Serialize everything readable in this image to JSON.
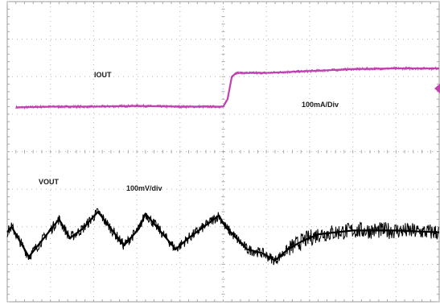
{
  "chart_data": {
    "type": "line",
    "title": "",
    "xlabel": "",
    "ylabel": "",
    "grid": true,
    "grid_divisions": {
      "x": 10,
      "y": 8
    },
    "xlim": [
      0,
      10
    ],
    "ylim": [
      -4,
      4
    ],
    "annotations": {
      "iout_name": "IOUT",
      "iout_scale": "100mA/Div",
      "vout_name": "VOUT",
      "vout_scale": "100mV/div"
    },
    "series": [
      {
        "key": "iout",
        "color": "#c040b0",
        "x": [
          0.2,
          1.0,
          2.0,
          3.0,
          4.0,
          5.0,
          5.1,
          5.2,
          5.3,
          6.0,
          7.0,
          8.0,
          9.0,
          10.0
        ],
        "y": [
          1.18,
          1.2,
          1.2,
          1.22,
          1.2,
          1.2,
          1.4,
          2.0,
          2.1,
          2.1,
          2.15,
          2.2,
          2.22,
          2.22
        ]
      },
      {
        "key": "vout",
        "color": "#000000",
        "x": [
          0.0,
          0.1,
          0.5,
          1.2,
          1.45,
          1.75,
          2.1,
          2.7,
          3.05,
          3.2,
          3.9,
          4.2,
          4.9,
          5.05,
          5.3,
          5.55,
          5.9,
          6.2,
          6.5,
          6.8,
          7.2,
          8.0,
          9.0,
          10.0
        ],
        "y": [
          -2.15,
          -2.0,
          -2.8,
          -1.8,
          -2.3,
          -2.05,
          -1.6,
          -2.5,
          -2.05,
          -1.65,
          -2.6,
          -2.3,
          -1.7,
          -2.0,
          -2.3,
          -2.6,
          -2.7,
          -2.9,
          -2.6,
          -2.4,
          -2.2,
          -2.1,
          -2.1,
          -2.15
        ]
      }
    ],
    "markers": {
      "channel_marker_color": "#c040b0"
    }
  }
}
